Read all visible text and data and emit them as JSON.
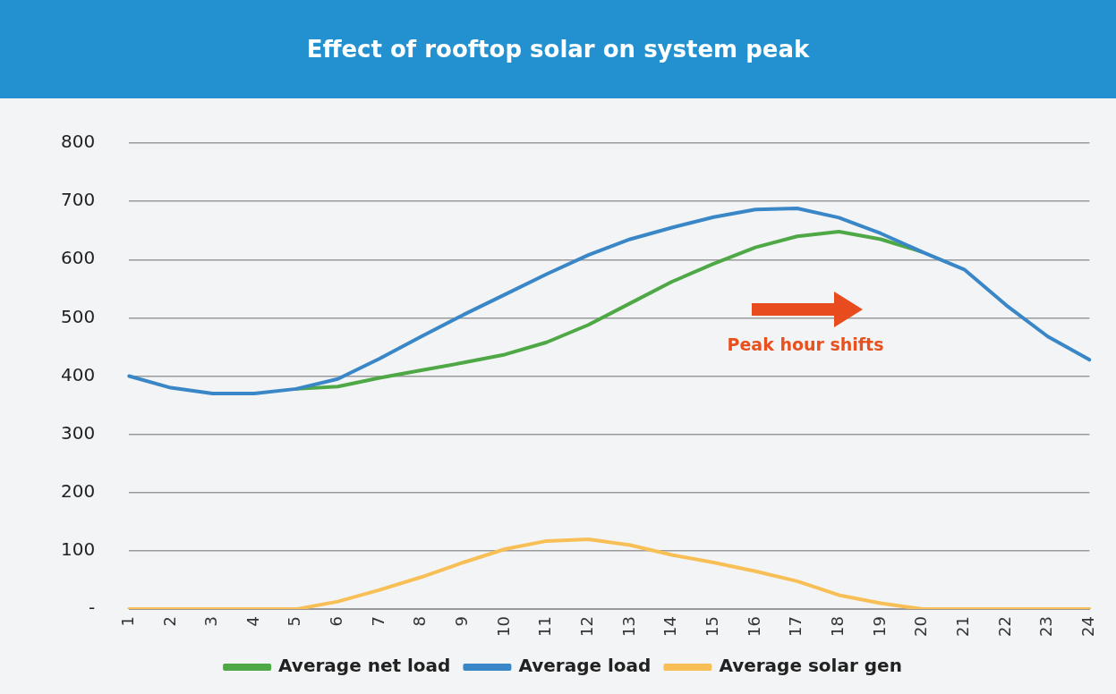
{
  "chart_data": {
    "type": "line",
    "title": "Effect of rooftop solar on system peak",
    "categories": [
      "1",
      "2",
      "3",
      "4",
      "5",
      "6",
      "7",
      "8",
      "9",
      "10",
      "11",
      "12",
      "13",
      "14",
      "15",
      "16",
      "17",
      "18",
      "19",
      "20",
      "21",
      "22",
      "23",
      "24"
    ],
    "series": [
      {
        "name": "Average net load",
        "color": "#4ea846",
        "values": [
          null,
          null,
          null,
          null,
          378,
          382,
          397,
          410,
          423,
          437,
          458,
          488,
          525,
          562,
          593,
          621,
          640,
          648,
          635,
          613,
          null,
          null,
          null,
          null
        ]
      },
      {
        "name": "Average load",
        "color": "#3a87c8",
        "values": [
          400,
          380,
          370,
          370,
          378,
          395,
          430,
          468,
          505,
          540,
          575,
          608,
          635,
          655,
          673,
          686,
          688,
          672,
          645,
          613,
          583,
          522,
          468,
          428
        ]
      },
      {
        "name": "Average solar gen",
        "color": "#f7bf55",
        "values": [
          0,
          0,
          0,
          0,
          0,
          13,
          33,
          55,
          80,
          103,
          117,
          120,
          110,
          93,
          80,
          65,
          48,
          24,
          10,
          0,
          0,
          0,
          0,
          0
        ]
      }
    ],
    "ylim": [
      0,
      800
    ],
    "yticks": [
      {
        "value": 0,
        "label": "-"
      },
      100,
      200,
      300,
      400,
      500,
      600,
      700,
      800
    ],
    "grid": "y",
    "legend": "bottom",
    "marker": "none",
    "line_style": "solid",
    "annotations": [
      "Peak hour shifts"
    ]
  }
}
